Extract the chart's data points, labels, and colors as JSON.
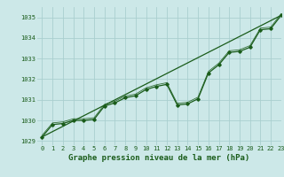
{
  "title": "Graphe pression niveau de la mer (hPa)",
  "bg_color": "#cce8e8",
  "grid_color": "#aacfcf",
  "line_color": "#1a5c1a",
  "xlim": [
    -0.5,
    23.0
  ],
  "ylim": [
    1028.8,
    1035.5
  ],
  "yticks": [
    1029,
    1030,
    1031,
    1032,
    1033,
    1034,
    1035
  ],
  "xticks": [
    0,
    1,
    2,
    3,
    4,
    5,
    6,
    7,
    8,
    9,
    10,
    11,
    12,
    13,
    14,
    15,
    16,
    17,
    18,
    19,
    20,
    21,
    22,
    23
  ],
  "series1_x": [
    0,
    1,
    2,
    3,
    4,
    5,
    6,
    7,
    8,
    9,
    10,
    11,
    12,
    13,
    14,
    15,
    16,
    17,
    18,
    19,
    20,
    21,
    22,
    23
  ],
  "series1_y": [
    1029.2,
    1029.8,
    1029.85,
    1030.0,
    1030.0,
    1030.05,
    1030.7,
    1030.85,
    1031.1,
    1031.2,
    1031.5,
    1031.65,
    1031.75,
    1030.75,
    1030.8,
    1031.05,
    1032.3,
    1032.7,
    1033.3,
    1033.35,
    1033.55,
    1034.4,
    1034.45,
    1035.1
  ],
  "series2_x": [
    0,
    23
  ],
  "series2_y": [
    1029.2,
    1035.1
  ],
  "title_fontsize": 6.5,
  "tick_fontsize": 5.0
}
